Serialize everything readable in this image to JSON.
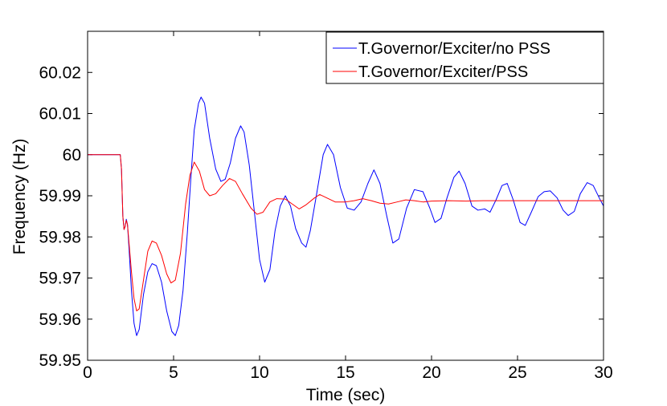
{
  "chart_data": {
    "type": "line",
    "title": "",
    "xlabel": "Time (sec)",
    "ylabel": "Frequency (Hz)",
    "xlim": [
      0,
      30
    ],
    "ylim": [
      59.95,
      60.03
    ],
    "xticks": [
      0,
      5,
      10,
      15,
      20,
      25,
      30
    ],
    "xtick_labels": [
      "0",
      "5",
      "10",
      "15",
      "20",
      "25",
      "30"
    ],
    "yticks": [
      59.95,
      59.96,
      59.97,
      59.98,
      59.99,
      60,
      60.01,
      60.02
    ],
    "ytick_labels": [
      "59.95",
      "59.96",
      "59.97",
      "59.98",
      "59.99",
      "60",
      "60.01",
      "60.02"
    ],
    "grid": false,
    "legend_position": "top-right",
    "series": [
      {
        "name": "T.Governor/Exciter/no PSS",
        "color": "#0000ff",
        "points": [
          [
            0,
            60.0
          ],
          [
            1.9,
            60.0
          ],
          [
            1.97,
            59.9965
          ],
          [
            2.05,
            59.985
          ],
          [
            2.12,
            59.9818
          ],
          [
            2.18,
            59.9825
          ],
          [
            2.25,
            59.9843
          ],
          [
            2.32,
            59.983
          ],
          [
            2.42,
            59.9765
          ],
          [
            2.55,
            59.967
          ],
          [
            2.7,
            59.959
          ],
          [
            2.85,
            59.956
          ],
          [
            3.0,
            59.9575
          ],
          [
            3.25,
            59.966
          ],
          [
            3.5,
            59.9715
          ],
          [
            3.75,
            59.9735
          ],
          [
            4.0,
            59.973
          ],
          [
            4.3,
            59.969
          ],
          [
            4.6,
            59.962
          ],
          [
            4.9,
            59.957
          ],
          [
            5.1,
            59.956
          ],
          [
            5.3,
            59.9585
          ],
          [
            5.55,
            59.967
          ],
          [
            5.8,
            59.981
          ],
          [
            6.0,
            59.994
          ],
          [
            6.2,
            60.006
          ],
          [
            6.45,
            60.0125
          ],
          [
            6.6,
            60.014
          ],
          [
            6.8,
            60.0125
          ],
          [
            7.1,
            60.004
          ],
          [
            7.45,
            59.9965
          ],
          [
            7.75,
            59.9935
          ],
          [
            8.0,
            59.994
          ],
          [
            8.3,
            59.998
          ],
          [
            8.6,
            60.004
          ],
          [
            8.9,
            60.007
          ],
          [
            9.1,
            60.0055
          ],
          [
            9.4,
            59.9975
          ],
          [
            9.7,
            59.986
          ],
          [
            10.0,
            59.9745
          ],
          [
            10.3,
            59.969
          ],
          [
            10.6,
            59.972
          ],
          [
            10.9,
            59.9815
          ],
          [
            11.2,
            59.9875
          ],
          [
            11.5,
            59.99
          ],
          [
            11.8,
            59.9875
          ],
          [
            12.1,
            59.982
          ],
          [
            12.45,
            59.9785
          ],
          [
            12.7,
            59.9775
          ],
          [
            12.95,
            59.9815
          ],
          [
            13.3,
            59.99
          ],
          [
            13.7,
            60.0
          ],
          [
            13.95,
            60.0025
          ],
          [
            14.3,
            60.0
          ],
          [
            14.7,
            59.992
          ],
          [
            15.1,
            59.987
          ],
          [
            15.5,
            59.9865
          ],
          [
            15.9,
            59.9885
          ],
          [
            16.3,
            59.993
          ],
          [
            16.65,
            59.9963
          ],
          [
            17.0,
            59.993
          ],
          [
            17.4,
            59.985
          ],
          [
            17.75,
            59.9785
          ],
          [
            18.1,
            59.9795
          ],
          [
            18.55,
            59.987
          ],
          [
            19.0,
            59.9915
          ],
          [
            19.5,
            59.991
          ],
          [
            19.9,
            59.987
          ],
          [
            20.2,
            59.9835
          ],
          [
            20.55,
            59.9845
          ],
          [
            20.9,
            59.9895
          ],
          [
            21.3,
            59.9945
          ],
          [
            21.6,
            59.996
          ],
          [
            21.95,
            59.993
          ],
          [
            22.35,
            59.9875
          ],
          [
            22.7,
            59.9865
          ],
          [
            23.1,
            59.9868
          ],
          [
            23.4,
            59.986
          ],
          [
            23.75,
            59.989
          ],
          [
            24.1,
            59.9925
          ],
          [
            24.4,
            59.993
          ],
          [
            24.75,
            59.989
          ],
          [
            25.15,
            59.9835
          ],
          [
            25.45,
            59.9828
          ],
          [
            25.8,
            59.986
          ],
          [
            26.2,
            59.9898
          ],
          [
            26.55,
            59.991
          ],
          [
            26.9,
            59.9912
          ],
          [
            27.3,
            59.9895
          ],
          [
            27.65,
            59.9865
          ],
          [
            27.95,
            59.9852
          ],
          [
            28.3,
            59.9862
          ],
          [
            28.65,
            59.9905
          ],
          [
            29.05,
            59.9932
          ],
          [
            29.4,
            59.9925
          ],
          [
            29.75,
            59.9895
          ],
          [
            30.0,
            59.9875
          ]
        ]
      },
      {
        "name": "T.Governor/Exciter/PSS",
        "color": "#ff0000",
        "points": [
          [
            0,
            60.0
          ],
          [
            1.9,
            60.0
          ],
          [
            1.97,
            59.9965
          ],
          [
            2.05,
            59.985
          ],
          [
            2.12,
            59.9818
          ],
          [
            2.18,
            59.9825
          ],
          [
            2.25,
            59.984
          ],
          [
            2.32,
            59.983
          ],
          [
            2.42,
            59.978
          ],
          [
            2.55,
            59.9715
          ],
          [
            2.7,
            59.965
          ],
          [
            2.85,
            59.962
          ],
          [
            3.0,
            59.9625
          ],
          [
            3.25,
            59.9695
          ],
          [
            3.5,
            59.9765
          ],
          [
            3.75,
            59.979
          ],
          [
            4.0,
            59.9785
          ],
          [
            4.3,
            59.9755
          ],
          [
            4.6,
            59.971
          ],
          [
            4.85,
            59.9688
          ],
          [
            5.1,
            59.9695
          ],
          [
            5.4,
            59.976
          ],
          [
            5.7,
            59.988
          ],
          [
            5.95,
            59.995
          ],
          [
            6.2,
            59.9982
          ],
          [
            6.5,
            59.996
          ],
          [
            6.8,
            59.9915
          ],
          [
            7.1,
            59.99
          ],
          [
            7.45,
            59.9905
          ],
          [
            7.85,
            59.9925
          ],
          [
            8.25,
            59.9942
          ],
          [
            8.6,
            59.9935
          ],
          [
            9.0,
            59.9905
          ],
          [
            9.5,
            59.987
          ],
          [
            9.85,
            59.9855
          ],
          [
            10.2,
            59.986
          ],
          [
            10.6,
            59.9885
          ],
          [
            11.0,
            59.9893
          ],
          [
            11.5,
            59.9892
          ],
          [
            11.9,
            59.988
          ],
          [
            12.3,
            59.9868
          ],
          [
            12.7,
            59.9878
          ],
          [
            13.2,
            59.9895
          ],
          [
            13.5,
            59.9903
          ],
          [
            13.9,
            59.9895
          ],
          [
            14.4,
            59.9885
          ],
          [
            15.0,
            59.9885
          ],
          [
            15.5,
            59.9888
          ],
          [
            16.0,
            59.9893
          ],
          [
            16.5,
            59.9888
          ],
          [
            17.0,
            59.9882
          ],
          [
            17.5,
            59.988
          ],
          [
            18.0,
            59.9885
          ],
          [
            18.5,
            59.989
          ],
          [
            19.0,
            59.9888
          ],
          [
            19.5,
            59.9885
          ],
          [
            20.0,
            59.9887
          ],
          [
            21.0,
            59.9888
          ],
          [
            22.0,
            59.9887
          ],
          [
            23.0,
            59.9888
          ],
          [
            24.0,
            59.9888
          ],
          [
            25.0,
            59.9888
          ],
          [
            26.0,
            59.9888
          ],
          [
            27.0,
            59.9888
          ],
          [
            28.0,
            59.9888
          ],
          [
            29.0,
            59.9888
          ],
          [
            30.0,
            59.9888
          ]
        ]
      }
    ]
  }
}
